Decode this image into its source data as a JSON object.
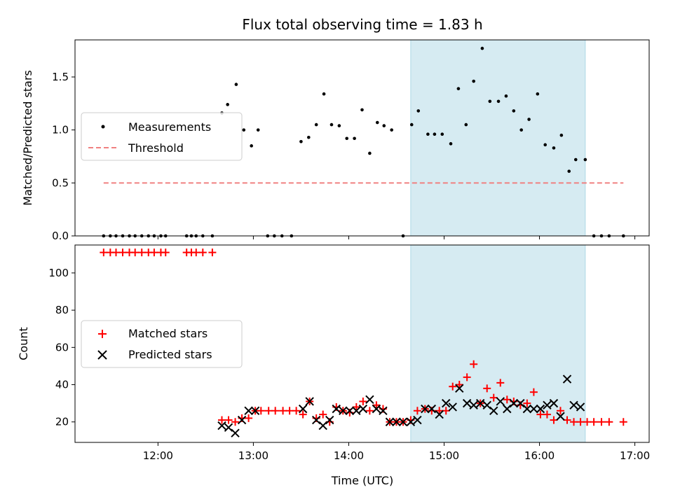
{
  "title": "Flux total observing time = 1.83 h",
  "top_ylabel": "Matched/Predicted stars",
  "bottom_ylabel": "Count",
  "xlabel": "Time (UTC)",
  "x_ticks": [
    "12:00",
    "13:00",
    "14:00",
    "15:00",
    "16:00",
    "17:00"
  ],
  "top_yticks": [
    "0.0",
    "0.5",
    "1.0",
    "1.5"
  ],
  "bottom_yticks": [
    "20",
    "40",
    "60",
    "80",
    "100"
  ],
  "legend_top": {
    "measurements": "Measurements",
    "threshold": "Threshold"
  },
  "legend_bottom": {
    "matched": "Matched stars",
    "predicted": "Predicted stars"
  },
  "colors": {
    "highlight": "#add8e6",
    "threshold": "#f08080",
    "matched": "#ff0000",
    "predicted": "#000000",
    "measurements": "#000000"
  },
  "chart_data": [
    {
      "type": "scatter",
      "title": "Flux total observing time = 1.83 h",
      "xlabel": "",
      "ylabel": "Matched/Predicted stars",
      "x_unit": "hours UTC",
      "xlim": [
        11.13,
        17.15
      ],
      "ylim": [
        0,
        1.85
      ],
      "highlight_span": [
        14.65,
        16.48
      ],
      "threshold": {
        "name": "Threshold",
        "y": 0.5,
        "x": [
          11.43,
          16.88
        ]
      },
      "series": [
        {
          "name": "Measurements",
          "x": [
            11.43,
            11.5,
            11.56,
            11.63,
            11.7,
            11.76,
            11.83,
            11.9,
            11.96,
            12.03,
            12.08,
            12.3,
            12.35,
            12.4,
            12.47,
            12.57,
            12.67,
            12.73,
            12.82,
            12.9,
            12.98,
            13.05,
            13.15,
            13.22,
            13.3,
            13.4,
            13.5,
            13.58,
            13.66,
            13.74,
            13.82,
            13.9,
            13.98,
            14.06,
            14.14,
            14.22,
            14.3,
            14.37,
            14.45,
            14.57,
            14.66,
            14.73,
            14.83,
            14.9,
            14.98,
            15.07,
            15.15,
            15.23,
            15.31,
            15.4,
            15.48,
            15.57,
            15.65,
            15.73,
            15.81,
            15.89,
            15.98,
            16.06,
            16.15,
            16.23,
            16.31,
            16.38,
            16.48,
            16.57,
            16.65,
            16.73,
            16.88
          ],
          "y": [
            0,
            0,
            0,
            0,
            0,
            0,
            0,
            0,
            0,
            0,
            0,
            0,
            0,
            0,
            0,
            0,
            1.16,
            1.24,
            1.43,
            1.0,
            0.85,
            1.0,
            0,
            0,
            0,
            0,
            0.89,
            0.93,
            1.05,
            1.34,
            1.05,
            1.04,
            0.92,
            0.92,
            1.19,
            0.78,
            1.07,
            1.04,
            1.0,
            0,
            1.05,
            1.18,
            0.96,
            0.96,
            0.96,
            0.87,
            1.39,
            1.05,
            1.46,
            1.77,
            1.27,
            1.27,
            1.32,
            1.18,
            1.0,
            1.1,
            1.34,
            0.86,
            0.83,
            0.95,
            0.61,
            0.72,
            0.72,
            0,
            0,
            0,
            0
          ]
        }
      ]
    },
    {
      "type": "scatter",
      "xlabel": "Time (UTC)",
      "ylabel": "Count",
      "x_unit": "hours UTC",
      "xlim": [
        11.13,
        17.15
      ],
      "ylim": [
        9,
        115
      ],
      "highlight_span": [
        14.65,
        16.48
      ],
      "series": [
        {
          "name": "Matched stars",
          "x": [
            11.43,
            11.5,
            11.56,
            11.63,
            11.7,
            11.76,
            11.83,
            11.9,
            11.96,
            12.03,
            12.08,
            12.3,
            12.35,
            12.4,
            12.47,
            12.57,
            12.67,
            12.74,
            12.81,
            12.88,
            12.95,
            13.02,
            13.08,
            13.16,
            13.23,
            13.31,
            13.38,
            13.45,
            13.52,
            13.59,
            13.66,
            13.73,
            13.8,
            13.87,
            13.94,
            14.01,
            14.08,
            14.15,
            14.22,
            14.29,
            14.36,
            14.43,
            14.5,
            14.57,
            14.65,
            14.72,
            14.8,
            14.87,
            14.95,
            15.02,
            15.09,
            15.16,
            15.24,
            15.31,
            15.38,
            15.45,
            15.52,
            15.59,
            15.66,
            15.73,
            15.8,
            15.87,
            15.94,
            16.01,
            16.08,
            16.15,
            16.22,
            16.29,
            16.36,
            16.43,
            16.5,
            16.57,
            16.65,
            16.73,
            16.88
          ],
          "y": [
            111,
            111,
            111,
            111,
            111,
            111,
            111,
            111,
            111,
            111,
            111,
            111,
            111,
            111,
            111,
            111,
            21,
            21,
            20,
            22,
            22,
            26,
            26,
            26,
            26,
            26,
            26,
            26,
            24,
            31,
            22,
            24,
            20,
            28,
            26,
            25,
            28,
            31,
            26,
            29,
            27,
            20,
            20,
            20,
            21,
            26,
            27,
            26,
            26,
            26,
            39,
            40,
            44,
            51,
            30,
            38,
            33,
            41,
            32,
            31,
            29,
            30,
            36,
            24,
            24,
            21,
            26,
            21,
            20,
            20,
            20,
            20,
            20,
            20,
            20
          ]
        },
        {
          "name": "Predicted stars",
          "x": [
            12.67,
            12.74,
            12.81,
            12.88,
            12.95,
            13.02,
            13.52,
            13.59,
            13.66,
            13.73,
            13.8,
            13.87,
            13.94,
            14.01,
            14.08,
            14.15,
            14.22,
            14.29,
            14.36,
            14.43,
            14.5,
            14.57,
            14.65,
            14.72,
            14.8,
            14.87,
            14.95,
            15.02,
            15.09,
            15.16,
            15.24,
            15.31,
            15.38,
            15.45,
            15.52,
            15.59,
            15.66,
            15.73,
            15.8,
            15.87,
            15.94,
            16.01,
            16.08,
            16.15,
            16.22,
            16.29,
            16.36,
            16.43
          ],
          "y": [
            18,
            17,
            14,
            21,
            26,
            26,
            27,
            31,
            21,
            18,
            21,
            27,
            26,
            26,
            26,
            27,
            32,
            27,
            26,
            20,
            20,
            20,
            20,
            21,
            27,
            27,
            24,
            30,
            28,
            38,
            30,
            29,
            30,
            29,
            26,
            31,
            27,
            30,
            30,
            27,
            27,
            27,
            29,
            30,
            23,
            43,
            29,
            28
          ]
        }
      ]
    }
  ]
}
